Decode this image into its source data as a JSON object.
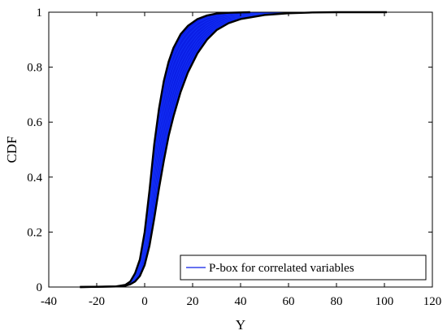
{
  "chart_data": {
    "type": "line",
    "title": "",
    "xlabel": "Y",
    "ylabel": "CDF",
    "xlim": [
      -40,
      120
    ],
    "ylim": [
      0,
      1
    ],
    "xticks": [
      -40,
      -20,
      0,
      20,
      40,
      60,
      80,
      100,
      120
    ],
    "yticks": [
      0,
      0.2,
      0.4,
      0.6,
      0.8,
      1
    ],
    "ytick_labels": [
      "0",
      "0.2",
      "0.4",
      "0.6",
      "0.8",
      "1"
    ],
    "grid": false,
    "legend": {
      "position": "bottom-right",
      "entries": [
        "P-box for correlated variables"
      ]
    },
    "colors": {
      "pbox": "#0a1ee6",
      "bounds": "#000000"
    },
    "series": [
      {
        "name": "P-box for correlated variables",
        "role": "realizations-band",
        "lower_bound": {
          "x": [
            -27,
            -12,
            -8,
            -6,
            -4,
            -2,
            0,
            2,
            4,
            6,
            8,
            10,
            12,
            15,
            18,
            22,
            26,
            30,
            35,
            40,
            50,
            60,
            70,
            80,
            101
          ],
          "y": [
            0,
            0.002,
            0.005,
            0.01,
            0.02,
            0.04,
            0.08,
            0.15,
            0.25,
            0.36,
            0.46,
            0.55,
            0.62,
            0.71,
            0.78,
            0.85,
            0.9,
            0.935,
            0.96,
            0.975,
            0.99,
            0.996,
            0.999,
            1,
            1
          ]
        },
        "upper_bound": {
          "x": [
            -27,
            -12,
            -8,
            -6,
            -4,
            -2,
            0,
            2,
            4,
            6,
            8,
            10,
            12,
            15,
            18,
            22,
            26,
            30,
            35,
            40,
            44
          ],
          "y": [
            0,
            0.002,
            0.008,
            0.02,
            0.05,
            0.1,
            0.2,
            0.35,
            0.52,
            0.65,
            0.75,
            0.82,
            0.87,
            0.92,
            0.95,
            0.975,
            0.988,
            0.995,
            0.998,
            0.999,
            1
          ]
        }
      }
    ]
  }
}
